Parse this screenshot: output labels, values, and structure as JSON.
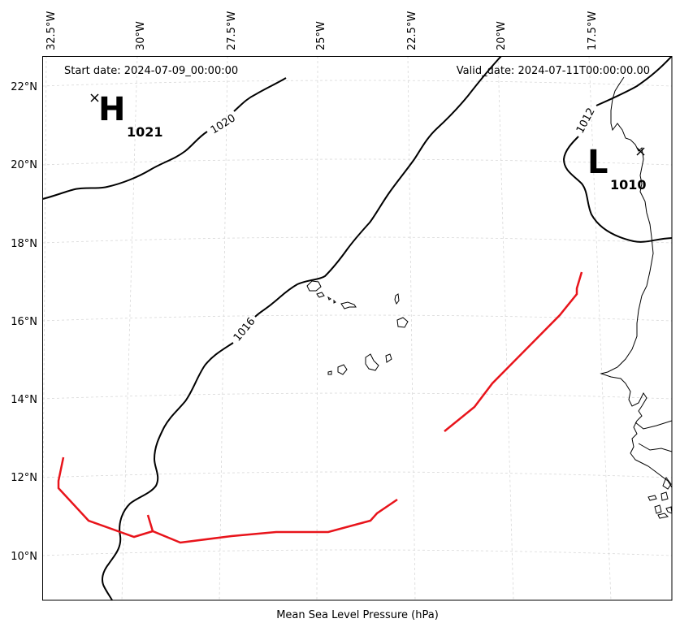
{
  "map": {
    "start_date": "Start date: 2024-07-09_00:00:00",
    "valid_date": "Valid_date: 2024-07-11T00:00:00.00",
    "xlabel": "Mean Sea Level Pressure (hPa)",
    "lon_ticks": [
      "32.5°W",
      "30°W",
      "27.5°W",
      "25°W",
      "22.5°W",
      "20°W",
      "17.5°W"
    ],
    "lat_ticks": [
      "22°N",
      "20°N",
      "18°N",
      "16°N",
      "14°N",
      "12°N",
      "10°N"
    ],
    "isobar_labels": [
      "1020",
      "1016",
      "1012"
    ],
    "high": {
      "letter": "H",
      "value": "1021"
    },
    "low": {
      "letter": "L",
      "value": "1010"
    },
    "colors": {
      "isobar": "#000000",
      "trough": "#e8141b",
      "grid": "#d8d8d8"
    }
  }
}
